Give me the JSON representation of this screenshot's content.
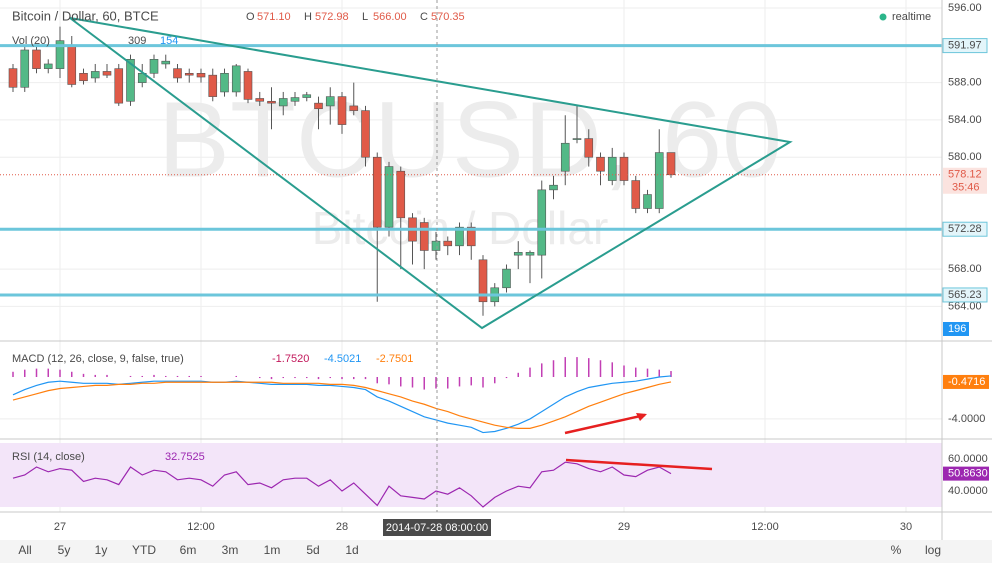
{
  "chart_data": [
    {
      "type": "candlestick",
      "title": "Bitcoin / Dollar, 60, BTCE",
      "ohlc_legend": [
        {
          "label": "O",
          "value": "571.10"
        },
        {
          "label": "H",
          "value": "572.98"
        },
        {
          "label": "L",
          "value": "566.00"
        },
        {
          "label": "C",
          "value": "570.35"
        }
      ],
      "volume_legend": {
        "title": "Vol (20)",
        "values": [
          "309",
          "154"
        ]
      },
      "status": "realtime",
      "watermark": "BTCUSD, 60",
      "watermark_subtitle": "Bitcoin / Dollar",
      "categories": [
        null,
        null,
        null,
        null,
        "27",
        null,
        null,
        null,
        null,
        null,
        null,
        null,
        null,
        null,
        null,
        null,
        "12:00",
        null,
        null,
        null,
        null,
        null,
        null,
        null,
        null,
        null,
        null,
        null,
        "28",
        null,
        null,
        null,
        null,
        null,
        null,
        null,
        null,
        null,
        null,
        null,
        null,
        null,
        null,
        null,
        null,
        null,
        null,
        null,
        null,
        null,
        null,
        null,
        "29",
        null,
        null,
        null,
        null,
        null,
        null,
        null,
        null,
        null,
        null,
        null,
        "12:00",
        null,
        null,
        null,
        null,
        null,
        null,
        null,
        null,
        null,
        null,
        null,
        "30"
      ],
      "open": [
        589.5,
        587.5,
        591.5,
        589.5,
        589.5,
        592,
        589,
        588.5,
        589.2,
        589.5,
        586,
        588,
        589,
        590,
        589.5,
        589,
        589,
        588.8,
        587,
        587,
        589.2,
        586.3,
        586,
        585.5,
        586,
        586.4,
        585.8,
        585.5,
        586.5,
        585.5,
        585,
        580,
        572.5,
        578.5,
        573.5,
        573,
        570,
        571,
        570.5,
        572.5,
        569,
        564.5,
        566,
        569.5,
        569.5,
        569.5,
        576.5,
        578.5,
        582,
        582,
        580,
        577.5,
        580,
        577.5,
        574.5,
        574.5,
        580.5,
        null,
        null,
        null,
        null,
        null,
        null,
        null,
        null,
        null,
        null,
        null,
        null,
        null,
        null,
        null,
        null,
        null,
        null,
        null,
        null
      ],
      "high": [
        590,
        592,
        592,
        590.5,
        594,
        593,
        589.5,
        590,
        590,
        590,
        591,
        590,
        591,
        591,
        590,
        589.5,
        589.5,
        589.5,
        589.5,
        590,
        589.5,
        587,
        587.5,
        587,
        587,
        587,
        586.5,
        587.5,
        587,
        588,
        585.5,
        580.5,
        579.5,
        579,
        574,
        573.5,
        572,
        571.5,
        573,
        573,
        569.5,
        566.5,
        568.5,
        571,
        570,
        577.5,
        578,
        584.5,
        585.5,
        583,
        580.5,
        581,
        580.5,
        578,
        576.5,
        583,
        580.5,
        null,
        null,
        null,
        null,
        null,
        null,
        null,
        null,
        null,
        null,
        null,
        null,
        null,
        null,
        null,
        null,
        null,
        null,
        null,
        null
      ],
      "low": [
        587,
        587,
        589,
        589,
        588.5,
        587.5,
        587.8,
        588,
        588.5,
        585.5,
        585.5,
        587.5,
        588.5,
        589.5,
        588,
        588,
        588,
        586,
        586.5,
        586.5,
        585.8,
        585.5,
        583,
        584.5,
        585.5,
        586,
        583,
        583.5,
        582.5,
        584.5,
        579,
        564.5,
        571.5,
        568,
        568.5,
        568,
        569,
        569.5,
        569.5,
        569,
        563,
        564,
        565.5,
        568,
        566.5,
        567,
        575.5,
        577,
        581.5,
        579,
        577,
        577,
        577,
        574,
        574,
        574,
        577.8,
        null,
        null,
        null,
        null,
        null,
        null,
        null,
        null,
        null,
        null,
        null,
        null,
        null,
        null,
        null,
        null,
        null,
        null,
        null,
        null
      ],
      "close": [
        587.5,
        591.5,
        589.5,
        590,
        592.5,
        587.8,
        588.2,
        589.2,
        588.8,
        585.8,
        590.5,
        589,
        590.5,
        590.3,
        588.5,
        588.8,
        588.6,
        586.5,
        589,
        589.8,
        586.2,
        586,
        585.8,
        586.3,
        586.4,
        586.7,
        585.2,
        586.5,
        583.5,
        585,
        580,
        572.5,
        579,
        573.5,
        571,
        570,
        571,
        570.5,
        572.5,
        570.5,
        564.5,
        566,
        568,
        569.8,
        569.8,
        576.5,
        577,
        581.5,
        582,
        580,
        578.5,
        580,
        577.5,
        574.5,
        576,
        580.5,
        578.12,
        null,
        null,
        null,
        null,
        null,
        null,
        null,
        null,
        null,
        null,
        null,
        null,
        null,
        null,
        null,
        null,
        null,
        null,
        null,
        null
      ],
      "up_color": "#53b987",
      "down_color": "#e05a48",
      "ylim": [
        560.4,
        596.86
      ],
      "yticks": [
        {
          "value": 596,
          "label": "596.00"
        },
        {
          "value": 588,
          "label": "588.00"
        },
        {
          "value": 584,
          "label": "584.00"
        },
        {
          "value": 580,
          "label": "580.00"
        },
        {
          "value": 568,
          "label": "568.00"
        },
        {
          "value": 564,
          "label": "564.00"
        }
      ],
      "grid": true,
      "levels": [
        591.97,
        572.28,
        565.23
      ],
      "level_color": "#6cc6db",
      "last_price": 578.12,
      "countdown": "35:46",
      "volume_last": 196,
      "crosshair_label": "2014-07-28 08:00:00"
    },
    {
      "type": "macd",
      "title": "MACD (12, 26, close, 9, false, true)",
      "legend_values": [
        {
          "value": "-1.7520",
          "color": "#c2185b"
        },
        {
          "value": "-4.5021",
          "color": "#2196f3"
        },
        {
          "value": "-2.7501",
          "color": "#ff7f0e"
        }
      ],
      "histogram": {
        "color": "#c23fb4",
        "values": [
          0.5,
          0.7,
          0.8,
          0.8,
          0.7,
          0.5,
          0.3,
          0.2,
          0.2,
          0,
          0.1,
          0.1,
          0.2,
          0.1,
          0.1,
          0.1,
          0.1,
          0,
          0,
          0.1,
          0,
          -0.1,
          -0.2,
          -0.1,
          -0.1,
          -0.1,
          -0.2,
          -0.1,
          -0.2,
          -0.2,
          -0.2,
          -0.6,
          -0.7,
          -0.9,
          -1.0,
          -1.2,
          -1.1,
          -1.1,
          -0.9,
          -0.8,
          -1.0,
          -0.6,
          -0.1,
          0.4,
          0.9,
          1.3,
          1.6,
          1.9,
          1.9,
          1.8,
          1.6,
          1.4,
          1.1,
          0.9,
          0.8,
          0.7,
          0.57
        ]
      },
      "series": [
        {
          "color": "#2196f3",
          "values": [
            -1.7,
            -1.2,
            -0.8,
            -0.5,
            -0.4,
            -0.5,
            -0.6,
            -0.6,
            -0.6,
            -0.7,
            -0.6,
            -0.5,
            -0.4,
            -0.4,
            -0.4,
            -0.4,
            -0.4,
            -0.5,
            -0.5,
            -0.4,
            -0.5,
            -0.6,
            -0.7,
            -0.7,
            -0.7,
            -0.7,
            -0.8,
            -0.8,
            -0.9,
            -1.0,
            -1.2,
            -1.9,
            -2.3,
            -2.8,
            -3.3,
            -3.8,
            -4.1,
            -4.4,
            -4.6,
            -4.8,
            -5.3,
            -5.2,
            -4.9,
            -4.5,
            -4.0,
            -3.3,
            -2.6,
            -1.9,
            -1.4,
            -1.0,
            -0.8,
            -0.6,
            -0.5,
            -0.4,
            -0.2,
            0,
            0.1
          ]
        },
        {
          "color": "#ff7f0e",
          "values": [
            -2.2,
            -1.9,
            -1.6,
            -1.3,
            -1.1,
            -1.0,
            -0.9,
            -0.8,
            -0.8,
            -0.7,
            -0.7,
            -0.6,
            -0.6,
            -0.5,
            -0.5,
            -0.5,
            -0.5,
            -0.5,
            -0.5,
            -0.5,
            -0.5,
            -0.5,
            -0.5,
            -0.6,
            -0.6,
            -0.6,
            -0.6,
            -0.7,
            -0.7,
            -0.8,
            -1.0,
            -1.3,
            -1.6,
            -1.9,
            -2.3,
            -2.6,
            -3.0,
            -3.3,
            -3.7,
            -4.0,
            -4.3,
            -4.6,
            -4.8,
            -4.9,
            -4.9,
            -4.6,
            -4.2,
            -3.8,
            -3.3,
            -2.8,
            -2.4,
            -2.0,
            -1.6,
            -1.3,
            -1.0,
            -0.7,
            -0.4716
          ]
        }
      ],
      "ylim": [
        -5.82,
        3.34
      ],
      "yticks": [
        {
          "value": -4,
          "label": "-4.0000"
        }
      ],
      "last_label": -0.4716
    },
    {
      "type": "line",
      "title": "RSI (14, close)",
      "legend_value": "32.7525",
      "series": [
        {
          "color": "#9c27b0",
          "values": [
            48,
            50,
            55,
            52,
            54,
            53,
            46,
            48,
            47,
            44,
            55,
            50,
            53,
            52,
            47,
            48,
            47,
            43,
            50,
            52,
            44,
            45,
            42,
            47,
            48,
            48,
            43,
            47,
            40,
            45,
            38,
            31,
            43,
            37,
            36,
            35,
            40,
            38,
            42,
            37,
            30,
            36,
            40,
            43,
            42,
            52,
            53,
            58,
            57,
            54,
            52,
            55,
            50,
            49,
            53,
            55,
            50.863
          ]
        }
      ],
      "ylim": [
        26.875,
        71.875
      ],
      "yticks": [
        {
          "value": 60,
          "label": "60.0000"
        },
        {
          "value": 40,
          "label": "40.0000"
        }
      ],
      "band": [
        30,
        70
      ],
      "last_label": {
        "value": 50.863,
        "label": "50.8630"
      }
    }
  ],
  "toolbar": {
    "ranges": [
      "All",
      "5y",
      "1y",
      "YTD",
      "6m",
      "3m",
      "1m",
      "5d",
      "1d"
    ],
    "options": [
      "%",
      "log"
    ]
  }
}
